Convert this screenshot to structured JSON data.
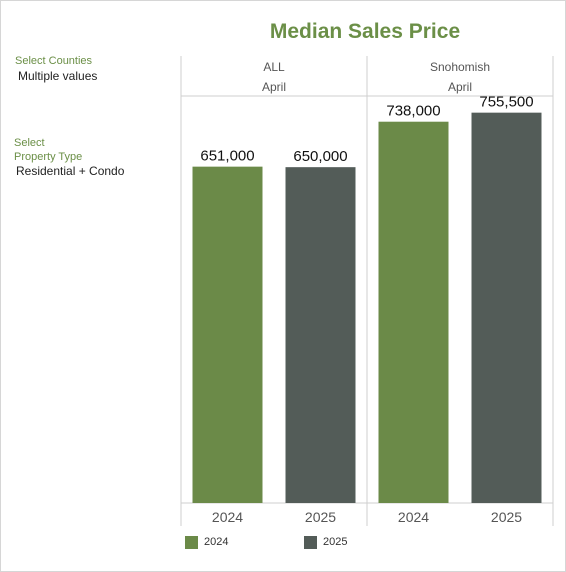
{
  "title": "Median Sales Price",
  "filters": {
    "counties_label": "Select Counties",
    "counties_value": "Multiple values",
    "property_type_label_line1": "Select",
    "property_type_label_line2": "Property Type",
    "property_type_value": "Residential + Condo"
  },
  "colors": {
    "2024": "#6b8a48",
    "2025": "#535c58",
    "title": "#6b8f47",
    "gridline": "#cfcfcf"
  },
  "chart_data": {
    "type": "bar",
    "title": "Median Sales Price",
    "panels": [
      {
        "name": "ALL",
        "month": "April",
        "categories": [
          "2024",
          "2025"
        ],
        "values": [
          651000,
          650000
        ],
        "labels": [
          "651,000",
          "650,000"
        ]
      },
      {
        "name": "Snohomish",
        "month": "April",
        "categories": [
          "2024",
          "2025"
        ],
        "values": [
          738000,
          755500
        ],
        "labels": [
          "738,000",
          "755,500"
        ]
      }
    ],
    "series": [
      {
        "name": "2024"
      },
      {
        "name": "2025"
      }
    ],
    "ylim": [
      0,
      780000
    ],
    "grid": false,
    "legend": "bottom"
  },
  "legend": {
    "items": [
      {
        "label": "2024",
        "color": "#6b8a48"
      },
      {
        "label": "2025",
        "color": "#535c58"
      }
    ]
  }
}
